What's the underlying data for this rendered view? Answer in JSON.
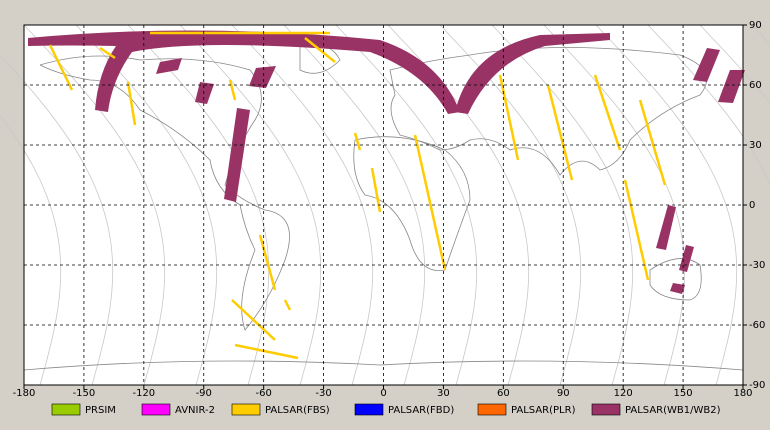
{
  "map": {
    "xlim": [
      -180,
      180
    ],
    "ylim": [
      -90,
      90
    ],
    "xticks": [
      -180,
      -150,
      -120,
      -90,
      -60,
      -30,
      0,
      30,
      60,
      90,
      120,
      150,
      180
    ],
    "yticks": [
      90,
      60,
      30,
      0,
      -30,
      -60,
      -90
    ],
    "grid": true,
    "legend": [
      {
        "name": "PRSIM",
        "color": "#99cc00"
      },
      {
        "name": "AVNIR-2",
        "color": "#ff00ff"
      },
      {
        "name": "PALSAR(FBS)",
        "color": "#ffcc00"
      },
      {
        "name": "PALSAR(FBD)",
        "color": "#0000ff"
      },
      {
        "name": "PALSAR(PLR)",
        "color": "#ff6600"
      },
      {
        "name": "PALSAR(WB1/WB2)",
        "color": "#993366"
      }
    ]
  }
}
